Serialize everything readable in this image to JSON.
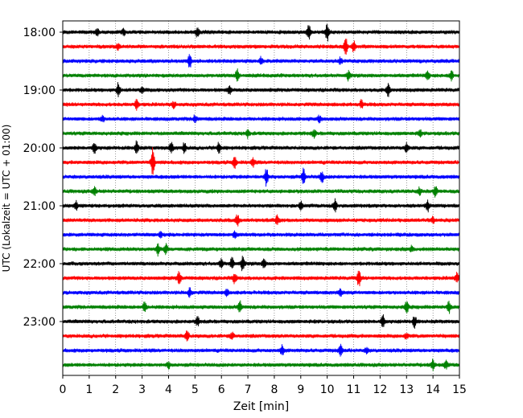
{
  "chart_data": {
    "type": "line",
    "title": "",
    "xlabel": "Zeit  [min]",
    "ylabel": "UTC (Lokalzeit = UTC + 01:00)",
    "xlim": [
      0,
      15
    ],
    "x_ticks": [
      "0",
      "1",
      "2",
      "3",
      "4",
      "5",
      "6",
      "7",
      "8",
      "9",
      "10",
      "11",
      "12",
      "13",
      "14",
      "15"
    ],
    "y_tick_labels": [
      "18:00",
      "19:00",
      "20:00",
      "21:00",
      "22:00",
      "23:00"
    ],
    "grid": "vertical dotted lines at each minute",
    "legend": "none",
    "trace_interval_minutes": 15,
    "series": [
      {
        "start": "18:00",
        "color": "#000000",
        "events": [
          [
            1.3,
            0.35
          ],
          [
            2.3,
            0.3
          ],
          [
            5.1,
            0.5
          ],
          [
            9.3,
            0.8
          ],
          [
            10.0,
            0.9
          ]
        ]
      },
      {
        "start": "18:15",
        "color": "#ff0000",
        "events": [
          [
            2.1,
            0.3
          ],
          [
            10.7,
            0.9
          ],
          [
            11.0,
            0.6
          ]
        ]
      },
      {
        "start": "18:30",
        "color": "#0000ff",
        "events": [
          [
            4.8,
            0.7
          ],
          [
            7.5,
            0.35
          ],
          [
            10.5,
            0.3
          ]
        ]
      },
      {
        "start": "18:45",
        "color": "#008000",
        "events": [
          [
            6.6,
            0.6
          ],
          [
            10.8,
            0.45
          ],
          [
            13.8,
            0.4
          ],
          [
            14.7,
            0.5
          ]
        ]
      },
      {
        "start": "19:00",
        "color": "#000000",
        "events": [
          [
            2.1,
            0.7
          ],
          [
            3.0,
            0.35
          ],
          [
            6.3,
            0.4
          ],
          [
            12.3,
            0.6
          ]
        ]
      },
      {
        "start": "19:15",
        "color": "#ff0000",
        "events": [
          [
            2.8,
            0.5
          ],
          [
            4.2,
            0.3
          ],
          [
            11.3,
            0.4
          ]
        ]
      },
      {
        "start": "19:30",
        "color": "#0000ff",
        "events": [
          [
            1.5,
            0.3
          ],
          [
            5.0,
            0.4
          ],
          [
            9.7,
            0.3
          ]
        ]
      },
      {
        "start": "19:45",
        "color": "#008000",
        "events": [
          [
            7.0,
            0.35
          ],
          [
            9.5,
            0.4
          ],
          [
            13.5,
            0.3
          ]
        ]
      },
      {
        "start": "20:00",
        "color": "#000000",
        "events": [
          [
            1.2,
            0.5
          ],
          [
            2.8,
            0.7
          ],
          [
            4.1,
            0.6
          ],
          [
            4.6,
            0.5
          ],
          [
            5.9,
            0.6
          ],
          [
            13.0,
            0.5
          ]
        ]
      },
      {
        "start": "20:15",
        "color": "#ff0000",
        "events": [
          [
            3.4,
            1.4
          ],
          [
            6.5,
            0.6
          ],
          [
            7.2,
            0.4
          ]
        ]
      },
      {
        "start": "20:30",
        "color": "#0000ff",
        "events": [
          [
            7.7,
            0.9
          ],
          [
            9.1,
            0.8
          ],
          [
            9.8,
            0.6
          ]
        ]
      },
      {
        "start": "20:45",
        "color": "#008000",
        "events": [
          [
            1.2,
            0.4
          ],
          [
            13.5,
            0.35
          ],
          [
            14.1,
            0.6
          ]
        ]
      },
      {
        "start": "21:00",
        "color": "#000000",
        "events": [
          [
            0.5,
            0.4
          ],
          [
            9.0,
            0.35
          ],
          [
            10.3,
            0.6
          ],
          [
            13.8,
            0.5
          ]
        ]
      },
      {
        "start": "21:15",
        "color": "#ff0000",
        "events": [
          [
            6.6,
            0.6
          ],
          [
            8.1,
            0.5
          ],
          [
            14.0,
            0.3
          ]
        ]
      },
      {
        "start": "21:30",
        "color": "#0000ff",
        "events": [
          [
            3.7,
            0.3
          ],
          [
            6.5,
            0.35
          ]
        ]
      },
      {
        "start": "21:45",
        "color": "#008000",
        "events": [
          [
            3.6,
            0.6
          ],
          [
            3.9,
            0.5
          ],
          [
            13.2,
            0.3
          ]
        ]
      },
      {
        "start": "22:00",
        "color": "#000000",
        "events": [
          [
            6.0,
            0.5
          ],
          [
            6.4,
            0.6
          ],
          [
            6.8,
            0.7
          ],
          [
            7.6,
            0.4
          ]
        ]
      },
      {
        "start": "22:15",
        "color": "#ff0000",
        "events": [
          [
            4.4,
            0.7
          ],
          [
            6.5,
            0.5
          ],
          [
            11.2,
            0.8
          ],
          [
            14.9,
            0.5
          ]
        ]
      },
      {
        "start": "22:30",
        "color": "#0000ff",
        "events": [
          [
            4.8,
            0.45
          ],
          [
            6.2,
            0.3
          ],
          [
            10.5,
            0.3
          ]
        ]
      },
      {
        "start": "22:45",
        "color": "#008000",
        "events": [
          [
            3.1,
            0.5
          ],
          [
            6.7,
            0.6
          ],
          [
            13.0,
            0.7
          ],
          [
            14.6,
            0.6
          ]
        ]
      },
      {
        "start": "23:00",
        "color": "#000000",
        "events": [
          [
            5.1,
            0.4
          ],
          [
            12.1,
            0.6
          ],
          [
            13.3,
            0.6
          ]
        ]
      },
      {
        "start": "23:15",
        "color": "#ff0000",
        "events": [
          [
            4.7,
            0.6
          ],
          [
            6.4,
            0.4
          ],
          [
            13.0,
            0.3
          ]
        ]
      },
      {
        "start": "23:30",
        "color": "#0000ff",
        "events": [
          [
            8.3,
            0.5
          ],
          [
            10.5,
            0.6
          ],
          [
            11.5,
            0.3
          ]
        ]
      },
      {
        "start": "23:45",
        "color": "#008000",
        "events": [
          [
            4.0,
            0.3
          ],
          [
            14.0,
            0.5
          ],
          [
            14.5,
            0.4
          ]
        ]
      }
    ]
  }
}
